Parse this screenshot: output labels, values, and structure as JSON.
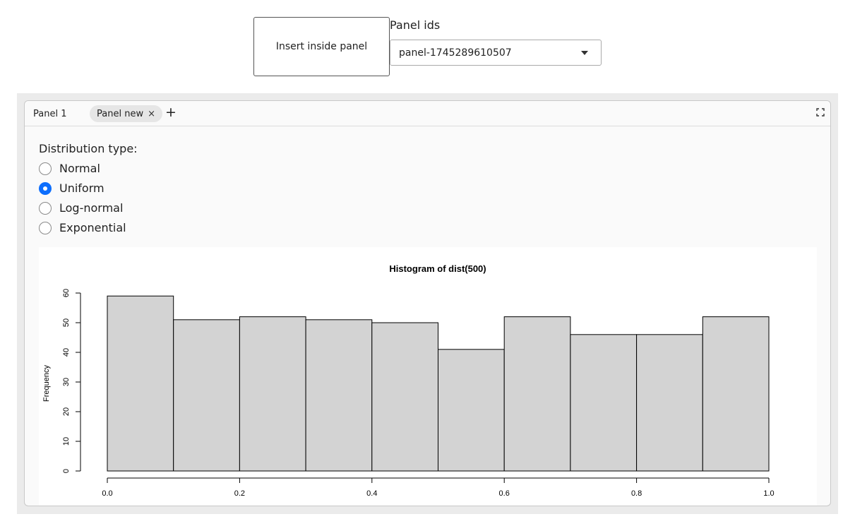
{
  "controls": {
    "insert_label": "Insert inside panel",
    "panel_ids_label": "Panel ids",
    "selected_panel": "panel-1745289610507"
  },
  "tabs": [
    {
      "label": "Panel 1"
    },
    {
      "label": "Panel new",
      "close": "×"
    }
  ],
  "add_tab": "+",
  "form": {
    "label": "Distribution type:",
    "options": [
      {
        "label": "Normal",
        "checked": false
      },
      {
        "label": "Uniform",
        "checked": true
      },
      {
        "label": "Log-normal",
        "checked": false
      },
      {
        "label": "Exponential",
        "checked": false
      }
    ]
  },
  "colors": {
    "accent": "#0d6efd",
    "bar_fill": "#d3d3d3",
    "bar_stroke": "#000000"
  },
  "chart_data": {
    "type": "bar",
    "title": "Histogram of dist(500)",
    "xlabel": "",
    "ylabel": "Frequency",
    "bin_edges": [
      0.0,
      0.1,
      0.2,
      0.3,
      0.4,
      0.5,
      0.6,
      0.7,
      0.8,
      0.9,
      1.0
    ],
    "values": [
      59,
      51,
      52,
      51,
      50,
      41,
      52,
      46,
      46,
      52
    ],
    "xlim": [
      0.0,
      1.0
    ],
    "ylim": [
      0,
      60
    ],
    "x_ticks": [
      "0.0",
      "0.2",
      "0.4",
      "0.6",
      "0.8",
      "1.0"
    ],
    "y_ticks": [
      "0",
      "10",
      "20",
      "30",
      "40",
      "50",
      "60"
    ],
    "grid": false,
    "legend": "none"
  }
}
